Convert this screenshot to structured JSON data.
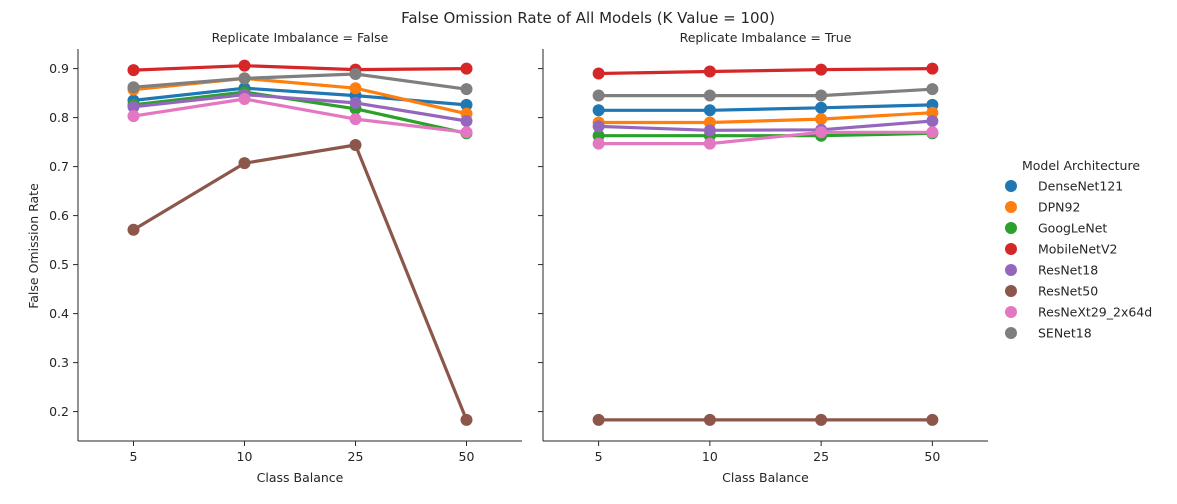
{
  "chart_data": {
    "type": "line",
    "title": "False Omission Rate of All Models (K Value = 100)",
    "xlabel": "Class Balance",
    "ylabel": "False Omission Rate",
    "categories": [
      "5",
      "10",
      "25",
      "50"
    ],
    "ylim": [
      0.14,
      0.94
    ],
    "yticks": [
      0.2,
      0.3,
      0.4,
      0.5,
      0.6,
      0.7,
      0.8,
      0.9
    ],
    "ytick_labels": [
      "0.2",
      "0.3",
      "0.4",
      "0.5",
      "0.6",
      "0.7",
      "0.8",
      "0.9"
    ],
    "legend": {
      "title": "Model Architecture",
      "placement": "right",
      "entries": [
        {
          "name": "DenseNet121",
          "color": "#1f77b4"
        },
        {
          "name": "DPN92",
          "color": "#ff7f0e"
        },
        {
          "name": "GoogLeNet",
          "color": "#2ca02c"
        },
        {
          "name": "MobileNetV2",
          "color": "#d62728"
        },
        {
          "name": "ResNet18",
          "color": "#9467bd"
        },
        {
          "name": "ResNet50",
          "color": "#8c564b"
        },
        {
          "name": "ResNeXt29_2x64d",
          "color": "#e377c2"
        },
        {
          "name": "SENet18",
          "color": "#7f7f7f"
        }
      ]
    },
    "panels": [
      {
        "title": "Replicate Imbalance = False",
        "series": [
          {
            "name": "DenseNet121",
            "values": [
              0.835,
              0.86,
              0.845,
              0.826
            ]
          },
          {
            "name": "DPN92",
            "values": [
              0.857,
              0.88,
              0.86,
              0.808
            ]
          },
          {
            "name": "GoogLeNet",
            "values": [
              0.826,
              0.852,
              0.818,
              0.768
            ]
          },
          {
            "name": "MobileNetV2",
            "values": [
              0.897,
              0.906,
              0.898,
              0.9
            ]
          },
          {
            "name": "ResNet18",
            "values": [
              0.822,
              0.847,
              0.83,
              0.793
            ]
          },
          {
            "name": "ResNet50",
            "values": [
              0.571,
              0.707,
              0.744,
              0.183
            ]
          },
          {
            "name": "ResNeXt29_2x64d",
            "values": [
              0.803,
              0.838,
              0.797,
              0.77
            ]
          },
          {
            "name": "SENet18",
            "values": [
              0.862,
              0.88,
              0.889,
              0.858
            ]
          }
        ]
      },
      {
        "title": "Replicate Imbalance = True",
        "series": [
          {
            "name": "DenseNet121",
            "values": [
              0.815,
              0.815,
              0.82,
              0.826
            ]
          },
          {
            "name": "DPN92",
            "values": [
              0.79,
              0.79,
              0.797,
              0.81
            ]
          },
          {
            "name": "GoogLeNet",
            "values": [
              0.763,
              0.763,
              0.763,
              0.768
            ]
          },
          {
            "name": "MobileNetV2",
            "values": [
              0.89,
              0.894,
              0.898,
              0.9
            ]
          },
          {
            "name": "ResNet18",
            "values": [
              0.782,
              0.774,
              0.775,
              0.793
            ]
          },
          {
            "name": "ResNet50",
            "values": [
              0.183,
              0.183,
              0.183,
              0.183
            ]
          },
          {
            "name": "ResNeXt29_2x64d",
            "values": [
              0.747,
              0.747,
              0.77,
              0.77
            ]
          },
          {
            "name": "SENet18",
            "values": [
              0.845,
              0.845,
              0.845,
              0.858
            ]
          }
        ]
      }
    ]
  }
}
